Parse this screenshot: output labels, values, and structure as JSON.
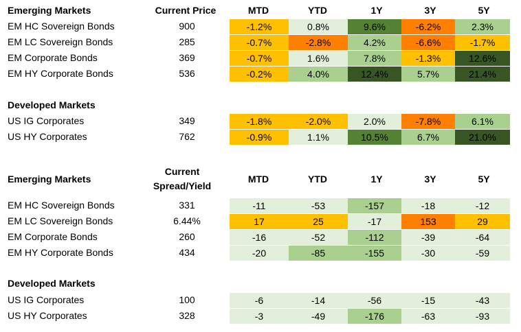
{
  "colors": {
    "light": "#e2efda",
    "mid": "#a9d08e",
    "green": "#548235",
    "dark": "#375623",
    "yellow": "#ffc000",
    "orange": "#ff7f00",
    "white": "#ffffff"
  },
  "headers": {
    "cols": [
      "MTD",
      "YTD",
      "1Y",
      "3Y",
      "5Y"
    ],
    "price": "Current Price",
    "spread_line1": "Current",
    "spread_line2": "Spread/Yield"
  },
  "blocks": [
    {
      "title": "Emerging Markets",
      "rows": [
        {
          "label": "EM HC Sovereign Bonds",
          "value": "900",
          "cells": [
            {
              "v": "-1.2%",
              "c": "yellow"
            },
            {
              "v": "0.8%",
              "c": "light"
            },
            {
              "v": "9.6%",
              "c": "green"
            },
            {
              "v": "-6.2%",
              "c": "orange"
            },
            {
              "v": "2.3%",
              "c": "mid"
            }
          ]
        },
        {
          "label": "EM LC Sovereign Bonds",
          "value": "285",
          "cells": [
            {
              "v": "-0.7%",
              "c": "yellow"
            },
            {
              "v": "-2.8%",
              "c": "orange"
            },
            {
              "v": "4.2%",
              "c": "mid"
            },
            {
              "v": "-6.6%",
              "c": "orange"
            },
            {
              "v": "-1.7%",
              "c": "yellow"
            }
          ]
        },
        {
          "label": "EM Corporate Bonds",
          "value": "369",
          "cells": [
            {
              "v": "-0.7%",
              "c": "yellow"
            },
            {
              "v": "1.6%",
              "c": "light"
            },
            {
              "v": "7.8%",
              "c": "mid"
            },
            {
              "v": "-1.3%",
              "c": "yellow"
            },
            {
              "v": "12.6%",
              "c": "dark"
            }
          ]
        },
        {
          "label": "EM HY Corporate Bonds",
          "value": "536",
          "cells": [
            {
              "v": "-0.2%",
              "c": "yellow"
            },
            {
              "v": "4.0%",
              "c": "mid"
            },
            {
              "v": "12.4%",
              "c": "dark"
            },
            {
              "v": "5.7%",
              "c": "mid"
            },
            {
              "v": "21.4%",
              "c": "dark"
            }
          ]
        }
      ]
    },
    {
      "title": "Developed Markets",
      "rows": [
        {
          "label": "US IG Corporates",
          "value": "349",
          "cells": [
            {
              "v": "-1.8%",
              "c": "yellow"
            },
            {
              "v": "-2.0%",
              "c": "yellow"
            },
            {
              "v": "2.0%",
              "c": "light"
            },
            {
              "v": "-7.8%",
              "c": "orange"
            },
            {
              "v": "6.1%",
              "c": "mid"
            }
          ]
        },
        {
          "label": "US HY Corporates",
          "value": "762",
          "cells": [
            {
              "v": "-0.9%",
              "c": "yellow"
            },
            {
              "v": "1.1%",
              "c": "light"
            },
            {
              "v": "10.5%",
              "c": "green"
            },
            {
              "v": "6.7%",
              "c": "mid"
            },
            {
              "v": "21.0%",
              "c": "dark"
            }
          ]
        }
      ]
    },
    {
      "title": "Emerging Markets",
      "rows": [
        {
          "label": "EM HC Sovereign Bonds",
          "value": "331",
          "cells": [
            {
              "v": "-11",
              "c": "light"
            },
            {
              "v": "-53",
              "c": "light"
            },
            {
              "v": "-157",
              "c": "mid"
            },
            {
              "v": "-18",
              "c": "light"
            },
            {
              "v": "-12",
              "c": "light"
            }
          ]
        },
        {
          "label": "EM LC Sovereign Bonds",
          "value": "6.44%",
          "cells": [
            {
              "v": "17",
              "c": "yellow"
            },
            {
              "v": "25",
              "c": "yellow"
            },
            {
              "v": "-17",
              "c": "light"
            },
            {
              "v": "153",
              "c": "orange"
            },
            {
              "v": "29",
              "c": "yellow"
            }
          ]
        },
        {
          "label": "EM Corporate Bonds",
          "value": "260",
          "cells": [
            {
              "v": "-16",
              "c": "light"
            },
            {
              "v": "-52",
              "c": "light"
            },
            {
              "v": "-112",
              "c": "mid"
            },
            {
              "v": "-39",
              "c": "light"
            },
            {
              "v": "-64",
              "c": "light"
            }
          ]
        },
        {
          "label": "EM HY Corporate Bonds",
          "value": "434",
          "cells": [
            {
              "v": "-20",
              "c": "light"
            },
            {
              "v": "-85",
              "c": "mid"
            },
            {
              "v": "-155",
              "c": "mid"
            },
            {
              "v": "-30",
              "c": "light"
            },
            {
              "v": "-59",
              "c": "light"
            }
          ]
        }
      ]
    },
    {
      "title": "Developed Markets",
      "rows": [
        {
          "label": "US IG Corporates",
          "value": "100",
          "cells": [
            {
              "v": "-6",
              "c": "light"
            },
            {
              "v": "-14",
              "c": "light"
            },
            {
              "v": "-56",
              "c": "light"
            },
            {
              "v": "-15",
              "c": "light"
            },
            {
              "v": "-43",
              "c": "light"
            }
          ]
        },
        {
          "label": "US HY Corporates",
          "value": "328",
          "cells": [
            {
              "v": "-3",
              "c": "light"
            },
            {
              "v": "-49",
              "c": "light"
            },
            {
              "v": "-176",
              "c": "mid"
            },
            {
              "v": "-63",
              "c": "light"
            },
            {
              "v": "-93",
              "c": "light"
            }
          ]
        }
      ]
    }
  ]
}
